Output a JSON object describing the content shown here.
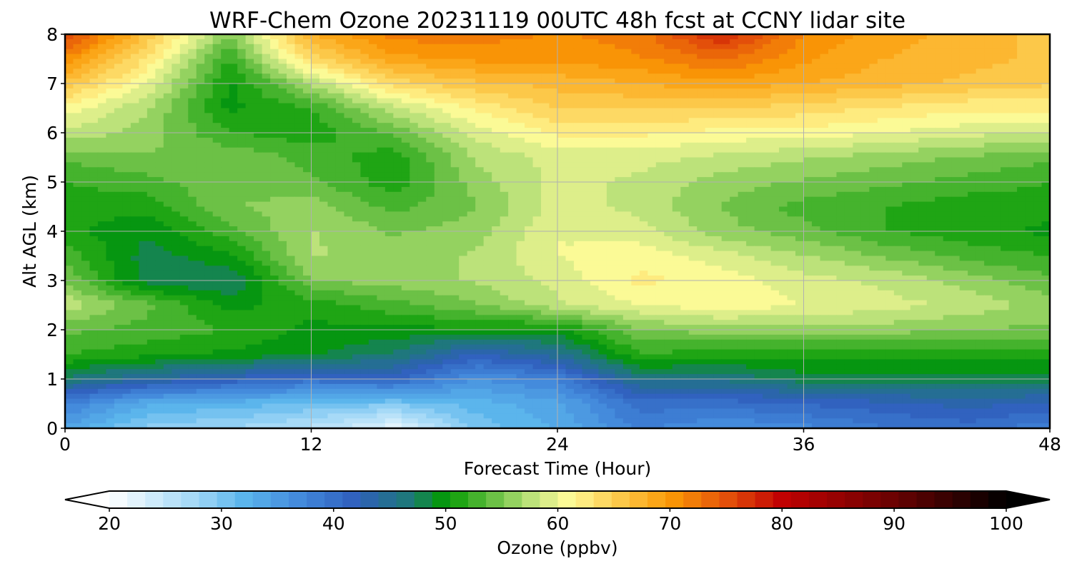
{
  "chart_data": {
    "type": "heatmap",
    "title": "WRF-Chem Ozone  20231119 00UTC 48h fcst at CCNY lidar site",
    "xlabel": "Forecast Time (Hour)",
    "ylabel": "Alt AGL (km)",
    "xlim": [
      0,
      48
    ],
    "ylim": [
      0,
      8
    ],
    "xticks": [
      0,
      12,
      24,
      36,
      48
    ],
    "yticks": [
      0,
      1,
      2,
      3,
      4,
      5,
      6,
      7,
      8
    ],
    "grid": true,
    "x": [
      0,
      4,
      8,
      12,
      16,
      20,
      24,
      28,
      32,
      36,
      40,
      44,
      48
    ],
    "y": [
      0,
      0.5,
      1,
      1.5,
      2,
      2.5,
      3,
      3.5,
      4,
      4.5,
      5,
      5.5,
      6,
      6.5,
      7,
      7.5,
      8
    ],
    "z": [
      [
        34,
        29,
        28,
        26,
        22,
        30,
        33,
        38,
        36,
        37,
        39,
        40,
        38
      ],
      [
        38,
        33,
        32,
        31,
        30,
        32,
        34,
        40,
        40,
        41,
        42,
        43,
        42
      ],
      [
        47,
        44,
        42,
        40,
        41,
        36,
        38,
        46,
        46,
        48,
        48,
        48,
        48
      ],
      [
        52,
        51,
        50,
        49,
        47,
        42,
        45,
        52,
        51,
        51,
        51,
        51,
        51
      ],
      [
        54,
        53,
        52,
        50,
        50,
        50,
        50,
        55,
        56,
        56,
        56,
        55,
        55
      ],
      [
        58,
        54,
        50,
        51,
        53,
        55,
        58,
        60,
        61,
        60,
        59,
        58,
        56
      ],
      [
        55,
        48,
        47,
        55,
        56,
        57,
        59,
        62,
        61,
        59,
        58,
        56,
        54
      ],
      [
        53,
        48,
        50,
        57,
        56,
        57,
        60,
        61,
        59,
        57,
        55,
        53,
        52
      ],
      [
        51,
        49,
        53,
        57,
        55,
        56,
        60,
        59,
        56,
        54,
        52,
        51,
        50
      ],
      [
        51,
        51,
        55,
        56,
        53,
        55,
        59,
        58,
        55,
        53,
        52,
        51,
        51
      ],
      [
        52,
        53,
        55,
        54,
        51,
        56,
        59,
        58,
        56,
        55,
        54,
        53,
        52
      ],
      [
        54,
        55,
        55,
        53,
        51,
        57,
        59,
        59,
        58,
        57,
        56,
        55,
        54
      ],
      [
        58,
        56,
        52,
        51,
        54,
        59,
        62,
        62,
        61,
        61,
        60,
        59,
        58
      ],
      [
        61,
        57,
        50,
        52,
        58,
        62,
        65,
        65,
        65,
        64,
        63,
        62,
        62
      ],
      [
        66,
        60,
        50,
        57,
        64,
        66,
        67,
        68,
        69,
        68,
        67,
        66,
        65
      ],
      [
        71,
        63,
        52,
        64,
        69,
        70,
        70,
        71,
        73,
        70,
        68,
        67,
        66
      ],
      [
        76,
        66,
        55,
        68,
        72,
        72,
        71,
        72,
        78,
        71,
        69,
        67,
        66
      ]
    ],
    "colorbar": {
      "label": "Ozone  (ppbv)",
      "min": 20,
      "max": 100,
      "ticks": [
        20,
        30,
        40,
        50,
        60,
        70,
        80,
        90,
        100
      ],
      "extend": "both",
      "stops": [
        {
          "v": 20,
          "c": "#ffffff"
        },
        {
          "v": 28,
          "c": "#9dd6f6"
        },
        {
          "v": 32,
          "c": "#5bb5ec"
        },
        {
          "v": 37,
          "c": "#4389db"
        },
        {
          "v": 42,
          "c": "#2f5fbd"
        },
        {
          "v": 47,
          "c": "#1d7a74"
        },
        {
          "v": 50,
          "c": "#029a02"
        },
        {
          "v": 54,
          "c": "#62bd3f"
        },
        {
          "v": 58,
          "c": "#c6e681"
        },
        {
          "v": 61,
          "c": "#fffb98"
        },
        {
          "v": 65,
          "c": "#fcce52"
        },
        {
          "v": 70,
          "c": "#fb9a06"
        },
        {
          "v": 75,
          "c": "#e4520a"
        },
        {
          "v": 80,
          "c": "#c10202"
        },
        {
          "v": 90,
          "c": "#6a0202"
        },
        {
          "v": 100,
          "c": "#000000"
        }
      ]
    }
  }
}
